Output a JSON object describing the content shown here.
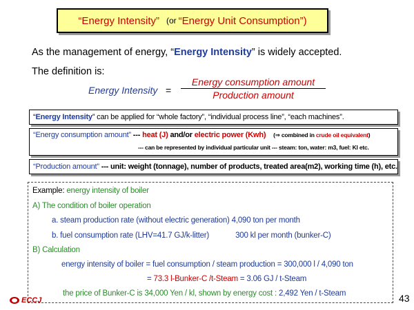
{
  "title": {
    "main": "“Energy Intensity”",
    "paren_open": "(or",
    "alt": "“Energy Unit Consumption”)"
  },
  "intro": {
    "line1_pre": "As the management of energy, “",
    "line1_term": "Energy Intensity",
    "line1_post": "” is widely accepted.",
    "line2": "The definition is:"
  },
  "formula": {
    "lhs": "Energy  Intensity",
    "equals": "=",
    "numerator": "Energy consumption amount",
    "denominator": "Production  amount"
  },
  "box1": {
    "open_q": "“",
    "term": "Energy Intensity",
    "rest": "” can be applied for “whole factory”, “individual process line”, “each machines”."
  },
  "box2": {
    "term": "“Energy consumption amount”",
    "dash": " --- ",
    "heat": "heat (J)",
    "andor": " and/or ",
    "elec": "electric power (Kwh)",
    "note_pre": "(⇒ combined  in ",
    "note_red": "crude oil equivalent",
    "note_post": ")",
    "line2": "--- can  be represented  by individual particular unit --- steam: ton,  water: m3,  fuel: Kl etc."
  },
  "box3": {
    "term": "“Production amount”",
    "rest": " --- unit: weight (tonnage), number of products, treated area(m2), working time (h), etc."
  },
  "example": {
    "title_pre": "Example: ",
    "title_green": "energy intensity of boiler",
    "a_head": "A) The condition of boiler operation",
    "a1": "a. steam production rate (without electric generation) 4,090 ton per month",
    "b1_pre": "b. fuel consumption rate (LHV=41.7 GJ/k-litter)",
    "b1_post": "300 kl per month   (bunker-C)",
    "b_head": "B) Calculation",
    "calc1": "energy intensity of boiler = fuel consumption / steam production = 300,000 l / 4,090 ton",
    "calc2_eq1": "= ",
    "calc2_v1": "73.3 l-Bunker-C /t-Steam",
    "calc2_eq2": " = ",
    "calc2_v2": "3.06 GJ / t-Steam",
    "price_pre": "the price of Bunker-C is 34,000 Yen / kl,    shown by energy cost : ",
    "price_val": "2,492 Yen / t-Steam"
  },
  "footer": {
    "logo_text": "ECCJ",
    "page_number": "43"
  },
  "colors": {
    "title_bg": "#ffff99",
    "red": "#cc0000",
    "navy": "#1f3b99",
    "green": "#2d8a2d"
  }
}
